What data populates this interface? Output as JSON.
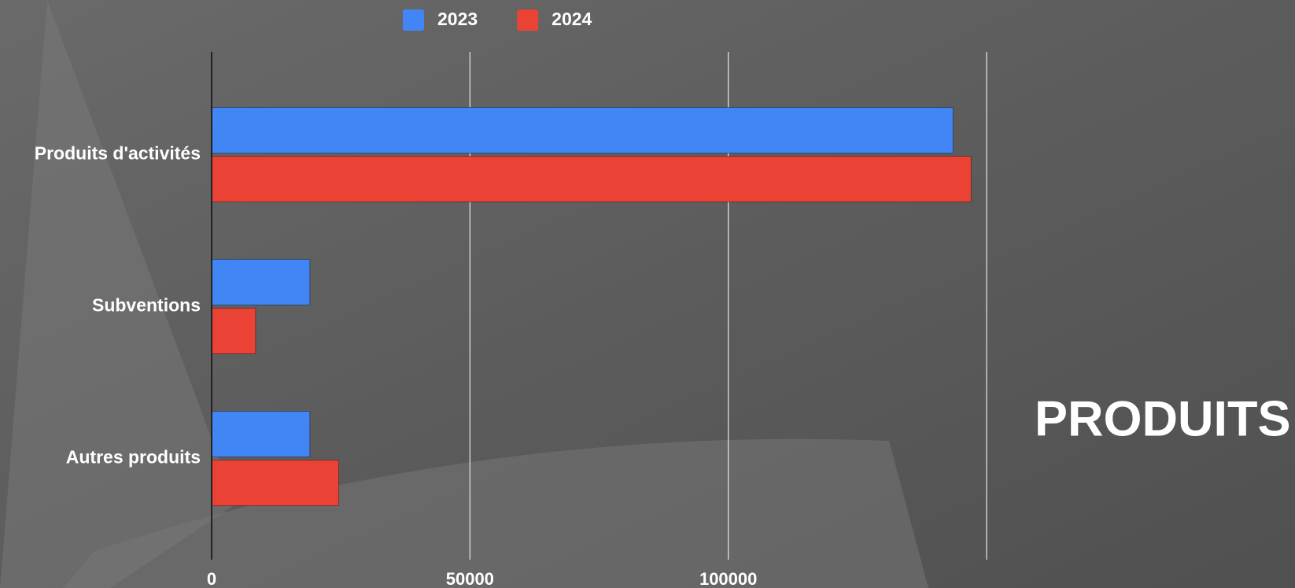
{
  "chart_data": {
    "type": "bar",
    "orientation": "horizontal",
    "annotation": "PRODUITS",
    "categories": [
      "Produits d'activités",
      "Subventions",
      "Autres produits"
    ],
    "series": [
      {
        "name": "2023",
        "color": "#4285f4",
        "values": [
          143500,
          19000,
          19000
        ]
      },
      {
        "name": "2024",
        "color": "#ea4335",
        "values": [
          147000,
          8500,
          24600
        ]
      }
    ],
    "xlim": [
      0,
      150000
    ],
    "xticks": [
      0,
      50000,
      100000
    ],
    "grid": true,
    "legend": "top"
  }
}
